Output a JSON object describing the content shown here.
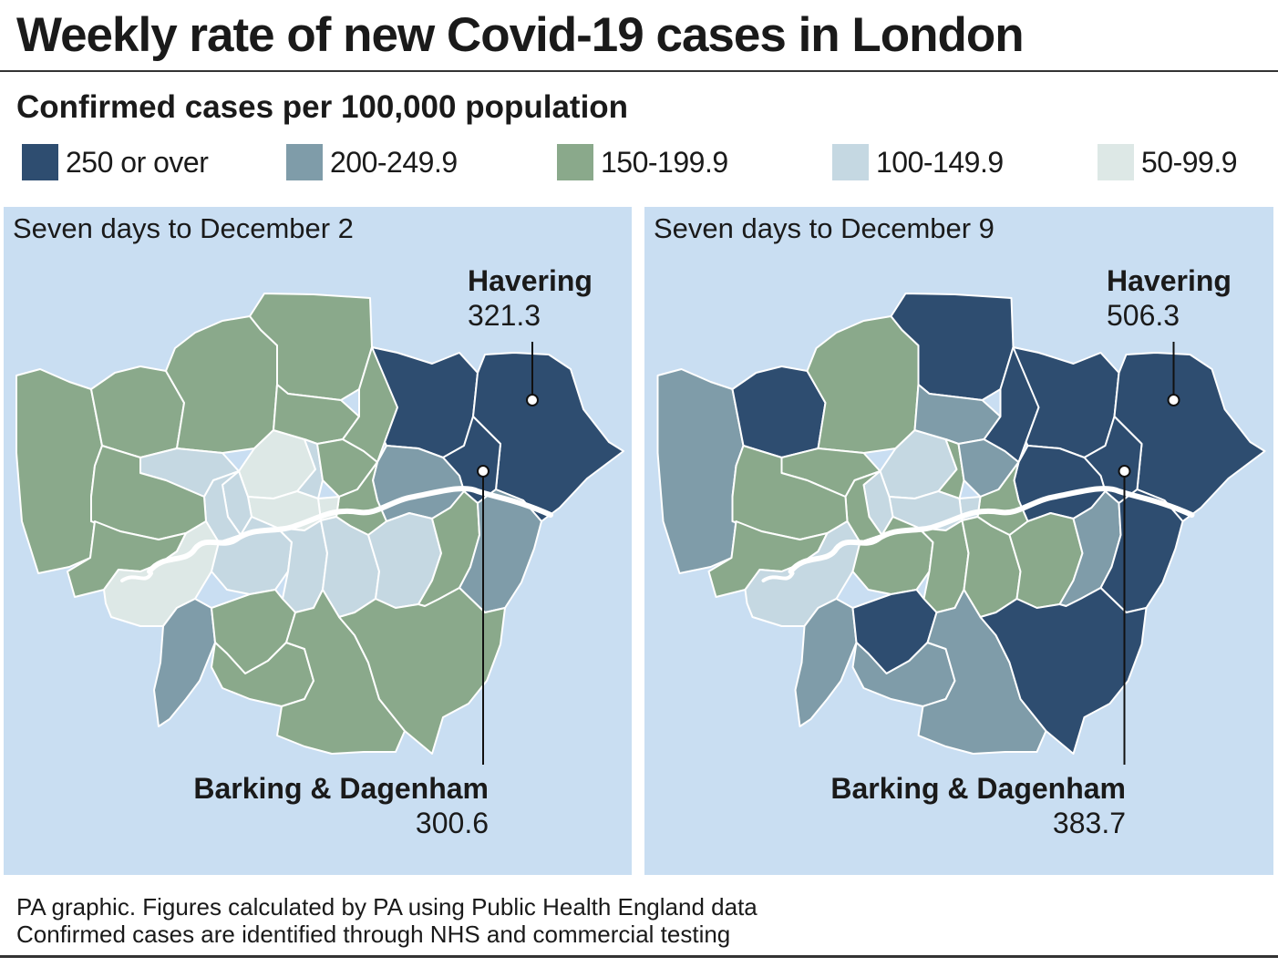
{
  "title": "Weekly rate of new Covid-19 cases in London",
  "subtitle": "Confirmed cases per 100,000 population",
  "colors": {
    "band_250_plus": "#2e4d70",
    "band_200_249": "#7f9ca9",
    "band_150_199": "#8aa98b",
    "band_100_149": "#c5d8e2",
    "band_50_99": "#dde8e6",
    "water_background": "#c9def2",
    "river": "#ffffff"
  },
  "legend": [
    {
      "label": "250 or over",
      "color": "#2e4d70"
    },
    {
      "label": "200-249.9",
      "color": "#7f9ca9"
    },
    {
      "label": "150-199.9",
      "color": "#8aa98b"
    },
    {
      "label": "100-149.9",
      "color": "#c5d8e2"
    },
    {
      "label": "50-99.9",
      "color": "#dde8e6"
    }
  ],
  "panels": [
    {
      "title": "Seven days to December 2",
      "annotations": {
        "havering_name": "Havering",
        "havering_value": "321.3",
        "barking_name": "Barking & Dagenham",
        "barking_value": "300.6"
      },
      "boroughs": {
        "hillingdon": "150-199.9",
        "harrow": "150-199.9",
        "barnet": "150-199.9",
        "enfield": "150-199.9",
        "brent": "100-149.9",
        "camden": "50-99.9",
        "islington": "100-149.9",
        "haringey": "150-199.9",
        "waltham_forest": "150-199.9",
        "redbridge": "250 or over",
        "havering": "250 or over",
        "barking_dagenham": "250 or over",
        "newham": "200-249.9",
        "hackney": "150-199.9",
        "tower_hamlets": "150-199.9",
        "city": "50-99.9",
        "westminster": "50-99.9",
        "kensington_chelsea": "100-149.9",
        "hammersmith_fulham": "100-149.9",
        "ealing": "150-199.9",
        "hounslow": "150-199.9",
        "richmond": "50-99.9",
        "kingston": "200-249.9",
        "merton": "150-199.9",
        "wandsworth": "100-149.9",
        "lambeth": "100-149.9",
        "southwark": "100-149.9",
        "lewisham": "100-149.9",
        "greenwich": "150-199.9",
        "bexley": "200-249.9",
        "bromley": "150-199.9",
        "croydon": "150-199.9",
        "sutton": "150-199.9"
      }
    },
    {
      "title": "Seven days to December 9",
      "annotations": {
        "havering_name": "Havering",
        "havering_value": "506.3",
        "barking_name": "Barking & Dagenham",
        "barking_value": "383.7"
      },
      "boroughs": {
        "hillingdon": "200-249.9",
        "harrow": "250 or over",
        "barnet": "150-199.9",
        "enfield": "250 or over",
        "brent": "150-199.9",
        "camden": "100-149.9",
        "islington": "150-199.9",
        "haringey": "200-249.9",
        "waltham_forest": "250 or over",
        "redbridge": "250 or over",
        "havering": "250 or over",
        "barking_dagenham": "250 or over",
        "newham": "250 or over",
        "hackney": "200-249.9",
        "tower_hamlets": "150-199.9",
        "city": "100-149.9",
        "westminster": "100-149.9",
        "kensington_chelsea": "100-149.9",
        "hammersmith_fulham": "150-199.9",
        "ealing": "150-199.9",
        "hounslow": "150-199.9",
        "richmond": "100-149.9",
        "kingston": "200-249.9",
        "merton": "250 or over",
        "wandsworth": "150-199.9",
        "lambeth": "150-199.9",
        "southwark": "150-199.9",
        "lewisham": "150-199.9",
        "greenwich": "200-249.9",
        "bexley": "250 or over",
        "bromley": "250 or over",
        "croydon": "200-249.9",
        "sutton": "200-249.9"
      }
    }
  ],
  "footer": {
    "line1": "PA graphic. Figures calculated by PA using Public Health England data",
    "line2": "Confirmed cases are identified through NHS and commercial testing"
  }
}
